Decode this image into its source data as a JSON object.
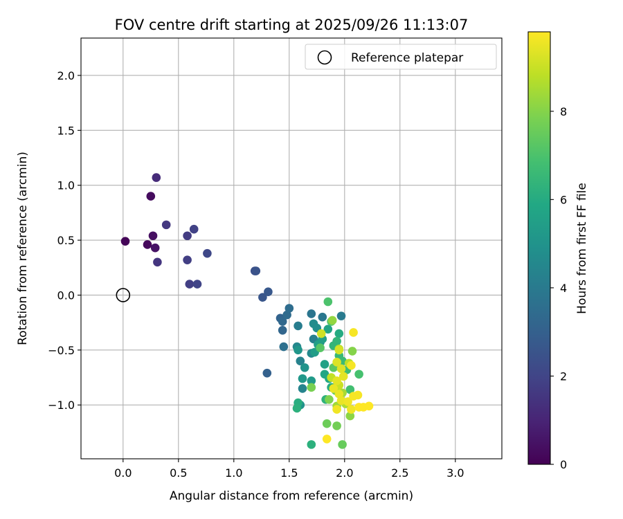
{
  "chart_data": {
    "type": "scatter",
    "title": "FOV centre drift starting at 2025/09/26 11:13:07",
    "xlabel": "Angular distance from reference (arcmin)",
    "ylabel": "Rotation from reference (arcmin)",
    "xlim": [
      -0.38,
      3.42
    ],
    "ylim": [
      -1.49,
      2.34
    ],
    "xticks": [
      0.0,
      0.5,
      1.0,
      1.5,
      2.0,
      2.5,
      3.0
    ],
    "xtick_labels": [
      "0.0",
      "0.5",
      "1.0",
      "1.5",
      "2.0",
      "2.5",
      "3.0"
    ],
    "yticks": [
      -1.0,
      -0.5,
      0.0,
      0.5,
      1.0,
      1.5,
      2.0
    ],
    "ytick_labels": [
      "−1.0",
      "−0.5",
      "0.0",
      "0.5",
      "1.0",
      "1.5",
      "2.0"
    ],
    "grid": true,
    "legend": {
      "position": "upper right",
      "entries": [
        {
          "label": "Reference platepar",
          "marker": "open-circle",
          "color": "#000000"
        }
      ]
    },
    "reference_point": {
      "x": 0.0,
      "y": 0.0
    },
    "colorbar": {
      "label": "Hours from first FF file",
      "colormap": "viridis",
      "range": [
        0,
        9.8
      ],
      "ticks": [
        0,
        2,
        4,
        6,
        8
      ],
      "tick_labels": [
        "0",
        "2",
        "4",
        "6",
        "8"
      ]
    },
    "points": [
      {
        "x": 0.02,
        "y": 0.49,
        "h": 0.1
      },
      {
        "x": 0.22,
        "y": 0.46,
        "h": 0.2
      },
      {
        "x": 0.25,
        "y": 0.9,
        "h": 0.3
      },
      {
        "x": 0.27,
        "y": 0.54,
        "h": 0.4
      },
      {
        "x": 0.29,
        "y": 0.43,
        "h": 0.5
      },
      {
        "x": 0.3,
        "y": 1.07,
        "h": 1.2
      },
      {
        "x": 0.31,
        "y": 0.3,
        "h": 1.5
      },
      {
        "x": 0.39,
        "y": 0.64,
        "h": 1.6
      },
      {
        "x": 0.58,
        "y": 0.54,
        "h": 1.7
      },
      {
        "x": 0.58,
        "y": 0.32,
        "h": 1.8
      },
      {
        "x": 0.6,
        "y": 0.1,
        "h": 1.8
      },
      {
        "x": 0.64,
        "y": 0.6,
        "h": 1.9
      },
      {
        "x": 0.67,
        "y": 0.1,
        "h": 2.0
      },
      {
        "x": 0.76,
        "y": 0.38,
        "h": 2.1
      },
      {
        "x": 1.19,
        "y": 0.22,
        "h": 2.4
      },
      {
        "x": 1.2,
        "y": 0.22,
        "h": 2.5
      },
      {
        "x": 1.26,
        "y": -0.02,
        "h": 2.6
      },
      {
        "x": 1.31,
        "y": 0.03,
        "h": 2.7
      },
      {
        "x": 1.3,
        "y": -0.71,
        "h": 3.0
      },
      {
        "x": 1.42,
        "y": -0.21,
        "h": 3.1
      },
      {
        "x": 1.44,
        "y": -0.32,
        "h": 3.2
      },
      {
        "x": 1.44,
        "y": -0.24,
        "h": 3.3
      },
      {
        "x": 1.48,
        "y": -0.18,
        "h": 3.4
      },
      {
        "x": 1.5,
        "y": -0.12,
        "h": 3.5
      },
      {
        "x": 1.45,
        "y": -0.47,
        "h": 3.6
      },
      {
        "x": 1.7,
        "y": -0.17,
        "h": 3.8
      },
      {
        "x": 1.8,
        "y": -0.2,
        "h": 3.9
      },
      {
        "x": 1.97,
        "y": -0.19,
        "h": 4.0
      },
      {
        "x": 1.58,
        "y": -0.28,
        "h": 4.1
      },
      {
        "x": 1.72,
        "y": -0.4,
        "h": 4.2
      },
      {
        "x": 1.6,
        "y": -0.6,
        "h": 4.3
      },
      {
        "x": 1.62,
        "y": -0.85,
        "h": 4.4
      },
      {
        "x": 1.57,
        "y": -0.47,
        "h": 4.5
      },
      {
        "x": 1.7,
        "y": -0.53,
        "h": 4.6
      },
      {
        "x": 1.72,
        "y": -0.26,
        "h": 4.7
      },
      {
        "x": 1.75,
        "y": -0.3,
        "h": 4.8
      },
      {
        "x": 1.78,
        "y": -0.43,
        "h": 4.9
      },
      {
        "x": 1.6,
        "y": -1.0,
        "h": 5.0
      },
      {
        "x": 1.64,
        "y": -0.66,
        "h": 5.0
      },
      {
        "x": 1.58,
        "y": -0.5,
        "h": 5.1
      },
      {
        "x": 1.62,
        "y": -0.76,
        "h": 5.2
      },
      {
        "x": 1.7,
        "y": -0.78,
        "h": 5.3
      },
      {
        "x": 1.73,
        "y": -0.52,
        "h": 5.4
      },
      {
        "x": 1.76,
        "y": -0.45,
        "h": 5.5
      },
      {
        "x": 1.8,
        "y": -0.4,
        "h": 5.5
      },
      {
        "x": 1.82,
        "y": -0.63,
        "h": 5.6
      },
      {
        "x": 1.85,
        "y": -0.31,
        "h": 5.7
      },
      {
        "x": 1.82,
        "y": -0.72,
        "h": 5.8
      },
      {
        "x": 1.86,
        "y": -0.76,
        "h": 5.9
      },
      {
        "x": 1.88,
        "y": -0.84,
        "h": 6.0
      },
      {
        "x": 1.95,
        "y": -0.35,
        "h": 6.0
      },
      {
        "x": 1.58,
        "y": -0.98,
        "h": 6.1
      },
      {
        "x": 1.57,
        "y": -1.03,
        "h": 6.2
      },
      {
        "x": 1.7,
        "y": -1.36,
        "h": 6.2
      },
      {
        "x": 1.83,
        "y": -0.95,
        "h": 6.3
      },
      {
        "x": 1.9,
        "y": -0.46,
        "h": 6.4
      },
      {
        "x": 1.93,
        "y": -0.42,
        "h": 6.4
      },
      {
        "x": 1.95,
        "y": -0.55,
        "h": 6.5
      },
      {
        "x": 1.98,
        "y": -0.6,
        "h": 6.6
      },
      {
        "x": 2.02,
        "y": -0.68,
        "h": 6.7
      },
      {
        "x": 2.05,
        "y": -0.86,
        "h": 6.8
      },
      {
        "x": 2.13,
        "y": -0.72,
        "h": 6.9
      },
      {
        "x": 1.85,
        "y": -0.06,
        "h": 7.0
      },
      {
        "x": 1.88,
        "y": -0.24,
        "h": 7.1
      },
      {
        "x": 1.78,
        "y": -0.48,
        "h": 7.2
      },
      {
        "x": 1.9,
        "y": -0.66,
        "h": 7.3
      },
      {
        "x": 1.92,
        "y": -0.87,
        "h": 7.4
      },
      {
        "x": 1.98,
        "y": -1.36,
        "h": 7.5
      },
      {
        "x": 1.84,
        "y": -1.17,
        "h": 7.6
      },
      {
        "x": 1.93,
        "y": -1.19,
        "h": 7.7
      },
      {
        "x": 1.7,
        "y": -0.84,
        "h": 7.8
      },
      {
        "x": 1.86,
        "y": -0.95,
        "h": 7.9
      },
      {
        "x": 2.07,
        "y": -0.51,
        "h": 8.0
      },
      {
        "x": 2.05,
        "y": -1.1,
        "h": 8.1
      },
      {
        "x": 1.89,
        "y": -0.23,
        "h": 8.2
      },
      {
        "x": 1.93,
        "y": -1.01,
        "h": 8.4
      },
      {
        "x": 1.98,
        "y": -0.89,
        "h": 8.5
      },
      {
        "x": 2.01,
        "y": -0.99,
        "h": 8.6
      },
      {
        "x": 1.95,
        "y": -0.49,
        "h": 8.7
      },
      {
        "x": 2.04,
        "y": -0.62,
        "h": 8.8
      },
      {
        "x": 1.88,
        "y": -0.75,
        "h": 8.9
      },
      {
        "x": 1.95,
        "y": -0.82,
        "h": 9.0
      },
      {
        "x": 1.79,
        "y": -0.35,
        "h": 9.1
      },
      {
        "x": 1.95,
        "y": -0.5,
        "h": 9.2
      },
      {
        "x": 1.93,
        "y": -0.61,
        "h": 9.3
      },
      {
        "x": 1.97,
        "y": -0.67,
        "h": 9.3
      },
      {
        "x": 1.99,
        "y": -0.74,
        "h": 9.4
      },
      {
        "x": 1.93,
        "y": -0.78,
        "h": 9.4
      },
      {
        "x": 1.9,
        "y": -0.85,
        "h": 9.5
      },
      {
        "x": 1.95,
        "y": -0.9,
        "h": 9.5
      },
      {
        "x": 1.97,
        "y": -0.96,
        "h": 9.5
      },
      {
        "x": 1.93,
        "y": -1.04,
        "h": 9.6
      },
      {
        "x": 2.03,
        "y": -0.97,
        "h": 9.6
      },
      {
        "x": 2.06,
        "y": -1.04,
        "h": 9.6
      },
      {
        "x": 2.08,
        "y": -0.34,
        "h": 9.7
      },
      {
        "x": 2.06,
        "y": -0.64,
        "h": 9.7
      },
      {
        "x": 2.08,
        "y": -0.92,
        "h": 9.7
      },
      {
        "x": 2.12,
        "y": -0.91,
        "h": 9.7
      },
      {
        "x": 2.13,
        "y": -1.02,
        "h": 9.8
      },
      {
        "x": 2.17,
        "y": -1.02,
        "h": 9.8
      },
      {
        "x": 2.22,
        "y": -1.01,
        "h": 9.8
      },
      {
        "x": 1.84,
        "y": -1.31,
        "h": 9.8
      }
    ]
  }
}
